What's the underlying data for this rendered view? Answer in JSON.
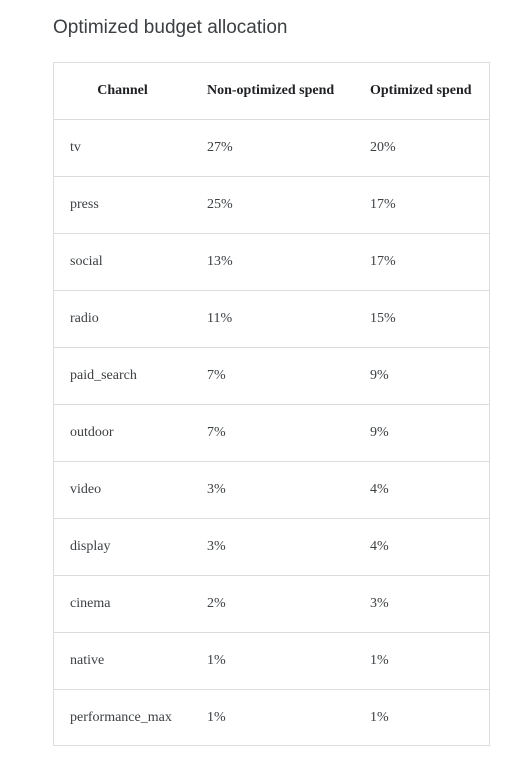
{
  "title": "Optimized budget allocation",
  "table": {
    "headers": [
      "Channel",
      "Non-optimized spend",
      "Optimized spend"
    ],
    "rows": [
      [
        "tv",
        "27%",
        "20%"
      ],
      [
        "press",
        "25%",
        "17%"
      ],
      [
        "social",
        "13%",
        "17%"
      ],
      [
        "radio",
        "11%",
        "15%"
      ],
      [
        "paid_search",
        "7%",
        "9%"
      ],
      [
        "outdoor",
        "7%",
        "9%"
      ],
      [
        "video",
        "3%",
        "4%"
      ],
      [
        "display",
        "3%",
        "4%"
      ],
      [
        "cinema",
        "2%",
        "3%"
      ],
      [
        "native",
        "1%",
        "1%"
      ],
      [
        "performance_max",
        "1%",
        "1%"
      ]
    ]
  }
}
